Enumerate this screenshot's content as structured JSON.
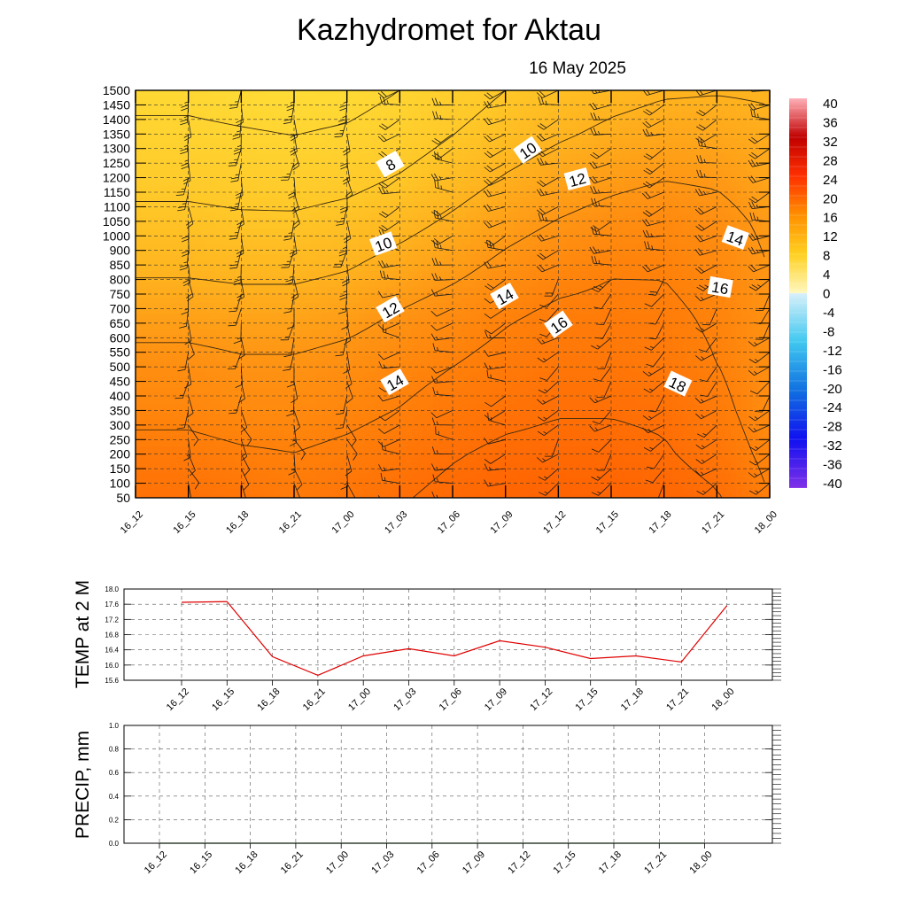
{
  "title": "Kazhydromet  for Aktau",
  "date": "16 May 2025",
  "chart_data": [
    {
      "type": "heatmap",
      "name": "cross-section",
      "x": [
        "16_12",
        "16_15",
        "16_18",
        "16_21",
        "17_00",
        "17_03",
        "17_06",
        "17_09",
        "17_12",
        "17_15",
        "17_18",
        "17_21",
        "18_00"
      ],
      "y_ticks": [
        50,
        100,
        150,
        200,
        250,
        300,
        350,
        400,
        450,
        500,
        550,
        600,
        650,
        700,
        750,
        800,
        850,
        900,
        1000,
        1050,
        1100,
        1150,
        1200,
        1250,
        1300,
        1350,
        1400,
        1450,
        1500
      ],
      "y_range": [
        50,
        1500
      ],
      "grid": true,
      "temperature": [
        [
          17.5,
          17.6,
          17.2,
          16.6,
          17.2,
          17.8,
          18.6,
          19.2,
          19.4,
          19.3,
          19.0,
          18.2,
          16.0
        ],
        [
          16.6,
          16.6,
          16.2,
          16.0,
          16.4,
          17.0,
          17.8,
          18.4,
          18.6,
          18.6,
          18.2,
          17.2,
          15.4
        ],
        [
          15.4,
          15.4,
          15.0,
          15.0,
          15.4,
          16.0,
          16.8,
          17.4,
          17.8,
          17.8,
          17.6,
          16.6,
          14.8
        ],
        [
          14.6,
          14.6,
          14.2,
          14.2,
          14.6,
          15.2,
          15.9,
          16.6,
          17.0,
          17.0,
          16.8,
          16.0,
          14.6
        ],
        [
          13.2,
          13.2,
          13.0,
          13.0,
          13.4,
          14.2,
          15.0,
          15.8,
          16.4,
          16.5,
          16.4,
          15.7,
          14.4
        ],
        [
          11.8,
          11.8,
          11.6,
          11.6,
          12.0,
          12.8,
          13.6,
          14.6,
          15.4,
          15.9,
          15.9,
          15.3,
          14.0
        ],
        [
          10.6,
          10.6,
          10.4,
          10.4,
          10.8,
          11.5,
          12.4,
          13.4,
          14.2,
          14.8,
          15.2,
          14.8,
          13.6
        ],
        [
          9.5,
          9.5,
          9.3,
          9.2,
          9.5,
          10.2,
          11.2,
          12.2,
          13.0,
          13.6,
          14.0,
          13.8,
          13.0
        ],
        [
          8.4,
          8.4,
          8.2,
          8.0,
          8.3,
          9.0,
          10.0,
          11.0,
          11.8,
          12.4,
          12.8,
          12.8,
          12.4
        ],
        [
          7.5,
          7.5,
          7.2,
          7.0,
          7.2,
          8.0,
          9.0,
          10.0,
          10.8,
          11.4,
          11.8,
          11.9,
          11.8
        ]
      ],
      "contour_labels": [
        "8",
        "10",
        "12",
        "14",
        "10",
        "12",
        "14",
        "16",
        "14",
        "16",
        "18"
      ],
      "colorbar": {
        "labels": [
          "40",
          "36",
          "32",
          "28",
          "24",
          "20",
          "16",
          "12",
          "8",
          "4",
          "0",
          "-4",
          "-8",
          "-12",
          "-16",
          "-20",
          "-24",
          "-28",
          "-32",
          "-36",
          "-40"
        ],
        "range": [
          -40,
          40
        ]
      }
    },
    {
      "type": "line",
      "ylabel": "TEMP at 2 M",
      "categories": [
        "16_12",
        "16_15",
        "16_18",
        "16_21",
        "17_00",
        "17_03",
        "17_06",
        "17_09",
        "17_12",
        "17_15",
        "17_18",
        "17_21",
        "18_00"
      ],
      "values": [
        17.65,
        17.67,
        16.22,
        15.73,
        16.24,
        16.43,
        16.24,
        16.64,
        16.47,
        16.17,
        16.24,
        16.08,
        17.56
      ],
      "color": "#e00000",
      "ylim": [
        15.6,
        18.0
      ],
      "y_ticks": [
        "18.0",
        "17.6",
        "17.2",
        "16.8",
        "16.4",
        "16.0",
        "15.6"
      ],
      "grid": true
    },
    {
      "type": "line",
      "ylabel": "PRECIP, mm",
      "categories": [
        "16_12",
        "16_15",
        "16_18",
        "16_21",
        "17_00",
        "17_03",
        "17_06",
        "17_09",
        "17_12",
        "17_15",
        "17_18",
        "17_21",
        "18_00"
      ],
      "values": [
        0,
        0,
        0,
        0,
        0,
        0,
        0,
        0,
        0,
        0,
        0,
        0,
        0
      ],
      "color": "#2a8a2a",
      "ylim": [
        0.0,
        1.0
      ],
      "y_ticks": [
        "1.0",
        "0.8",
        "0.6",
        "0.4",
        "0.2",
        "0.0"
      ],
      "grid": true
    }
  ]
}
